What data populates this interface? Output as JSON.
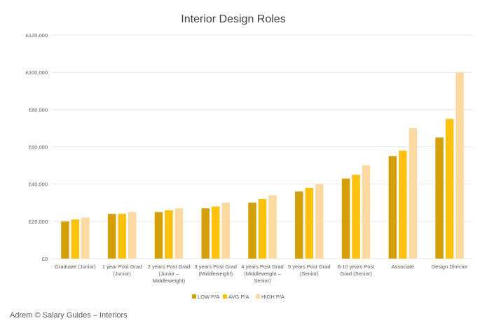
{
  "chart_data": {
    "type": "bar",
    "title": "Interior Design Roles",
    "xlabel": "",
    "ylabel": "",
    "ylim": [
      0,
      120000
    ],
    "y_ticks": [
      "£0",
      "£20,000",
      "£40,000",
      "£60,000",
      "£80,000",
      "£100,000",
      "£120,000"
    ],
    "grid": true,
    "legend_position": "bottom",
    "categories": [
      [
        "Graduate (Junior)"
      ],
      [
        "1 year Post Grad",
        "(Junior)"
      ],
      [
        "2 years Post Grad",
        "(Junior –",
        "Middleweight)"
      ],
      [
        "3 years Post Grad",
        "(Middleweight)"
      ],
      [
        "4 years Post Grad",
        "(Middleweight –",
        "Senior)"
      ],
      [
        "5 years Post Grad",
        "(Senior)"
      ],
      [
        "6-10 years Post",
        "Grad (Senior)"
      ],
      [
        "Associate"
      ],
      [
        "Design Director"
      ]
    ],
    "series": [
      {
        "name": "LOW P/A",
        "color": "#d4a00a",
        "values": [
          20000,
          24000,
          25000,
          27000,
          30000,
          36000,
          43000,
          55000,
          65000
        ]
      },
      {
        "name": "AVG P/A",
        "color": "#fdc10e",
        "values": [
          21000,
          24000,
          26000,
          28000,
          32000,
          38000,
          45000,
          58000,
          75000
        ]
      },
      {
        "name": "HIGH P/A",
        "color": "#fbd9a0",
        "values": [
          22000,
          25000,
          27000,
          30000,
          34000,
          40000,
          50000,
          70000,
          100000
        ]
      }
    ]
  },
  "footer": {
    "text": "Adrem © Salary Guides – Interiors"
  }
}
